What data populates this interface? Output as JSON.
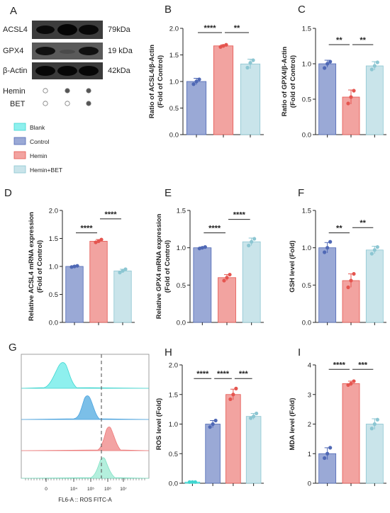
{
  "colors": {
    "control_fill": "#9aa9d6",
    "control_edge": "#4f68b5",
    "hemin_fill": "#f2a3a0",
    "hemin_edge": "#e5554f",
    "bet_fill": "#c9e4ea",
    "bet_edge": "#8cc6d2",
    "blank_fill": "#8ef0ee",
    "blank_edge": "#3fd6d0",
    "flow_blue": "#4aa3df",
    "flow_red": "#ee7a7a",
    "flow_green": "#7fe0c4"
  },
  "blot": {
    "panel_letter": "A",
    "rows": [
      {
        "protein": "ACSL4",
        "kda": "79kDa"
      },
      {
        "protein": "GPX4",
        "kda": "19 kDa"
      },
      {
        "protein": "β-Actin",
        "kda": "42kDa"
      }
    ],
    "treatments": [
      {
        "label": "Hemin",
        "dots": [
          false,
          true,
          true
        ]
      },
      {
        "label": "BET",
        "dots": [
          false,
          false,
          true
        ]
      }
    ]
  },
  "legend": {
    "items": [
      {
        "label": "Blank",
        "key": "blank"
      },
      {
        "label": "Control",
        "key": "control"
      },
      {
        "label": "Hemin",
        "key": "hemin"
      },
      {
        "label": "Hemin+BET",
        "key": "bet"
      }
    ]
  },
  "flow": {
    "panel_letter": "G",
    "xlabel": "FL6-A :: ROS FITC-A",
    "ticks": [
      "0",
      "10⁴",
      "10⁵",
      "10⁶",
      "10⁷"
    ]
  },
  "chart_data": [
    {
      "id": "B",
      "letter": "B",
      "type": "bar",
      "categories": [
        "Control",
        "Hemin",
        "Hemin+BET"
      ],
      "values": [
        1.0,
        1.67,
        1.33
      ],
      "errors": [
        0.06,
        0.02,
        0.09
      ],
      "points": [
        [
          0.95,
          1.0,
          1.04
        ],
        [
          1.65,
          1.67,
          1.69
        ],
        [
          1.26,
          1.35,
          1.4
        ]
      ],
      "ylabel": "Ratio of ACSL4/β-Actin\n(Fold of Control)",
      "ylim": [
        0,
        2.0
      ],
      "yticks": [
        "0.0",
        "0.5",
        "1.0",
        "1.5",
        "2.0"
      ],
      "sig": [
        {
          "from": 0,
          "to": 1,
          "label": "****",
          "level": 1.92
        },
        {
          "from": 1,
          "to": 2,
          "label": "**",
          "level": 1.92
        }
      ]
    },
    {
      "id": "C",
      "letter": "C",
      "type": "bar",
      "categories": [
        "Control",
        "Hemin",
        "Hemin+BET"
      ],
      "values": [
        1.0,
        0.53,
        0.97
      ],
      "errors": [
        0.05,
        0.1,
        0.06
      ],
      "points": [
        [
          0.94,
          1.0,
          1.03
        ],
        [
          0.44,
          0.53,
          0.62
        ],
        [
          0.92,
          0.97,
          1.02
        ]
      ],
      "ylabel": "Ratio of GPX4/β-Actin\n(Fold of Control)",
      "ylim": [
        0,
        1.5
      ],
      "yticks": [
        "0.0",
        "0.5",
        "1.0",
        "1.5"
      ],
      "sig": [
        {
          "from": 0,
          "to": 1,
          "label": "**",
          "level": 1.27
        },
        {
          "from": 1,
          "to": 2,
          "label": "**",
          "level": 1.27
        }
      ]
    },
    {
      "id": "D",
      "letter": "D",
      "type": "bar",
      "categories": [
        "Control",
        "Hemin",
        "Hemin+BET"
      ],
      "values": [
        1.0,
        1.45,
        0.92
      ],
      "errors": [
        0.01,
        0.03,
        0.03
      ],
      "points": [
        [
          0.99,
          1.0,
          1.01
        ],
        [
          1.43,
          1.45,
          1.48
        ],
        [
          0.89,
          0.92,
          0.95
        ]
      ],
      "ylabel": "Relative ACSL4 mRNA expression\n(Fold of Control)",
      "ylim": [
        0,
        2.0
      ],
      "yticks": [
        "0.0",
        "0.5",
        "1.0",
        "1.5",
        "2.0"
      ],
      "sig": [
        {
          "from": 0,
          "to": 1,
          "label": "****",
          "level": 1.6
        },
        {
          "from": 1,
          "to": 2,
          "label": "****",
          "level": 1.85
        }
      ]
    },
    {
      "id": "E",
      "letter": "E",
      "type": "bar",
      "categories": [
        "Control",
        "Hemin",
        "Hemin+BET"
      ],
      "values": [
        1.0,
        0.6,
        1.08
      ],
      "errors": [
        0.01,
        0.04,
        0.05
      ],
      "points": [
        [
          0.99,
          1.0,
          1.01
        ],
        [
          0.56,
          0.6,
          0.64
        ],
        [
          1.03,
          1.08,
          1.12
        ]
      ],
      "ylabel": "Relative GPX4 mRNA expression\n(Fold of Control)",
      "ylim": [
        0,
        1.5
      ],
      "yticks": [
        "0.0",
        "0.5",
        "1.0",
        "1.5"
      ],
      "sig": [
        {
          "from": 0,
          "to": 1,
          "label": "****",
          "level": 1.2
        },
        {
          "from": 1,
          "to": 2,
          "label": "****",
          "level": 1.38
        }
      ]
    },
    {
      "id": "F",
      "letter": "F",
      "type": "bar",
      "categories": [
        "Control",
        "Hemin",
        "Hemin+BET"
      ],
      "values": [
        1.0,
        0.56,
        0.97
      ],
      "errors": [
        0.07,
        0.09,
        0.05
      ],
      "points": [
        [
          0.94,
          1.0,
          1.08
        ],
        [
          0.47,
          0.56,
          0.65
        ],
        [
          0.92,
          0.97,
          1.01
        ]
      ],
      "ylabel": "GSH level (Fold)",
      "ylim": [
        0,
        1.5
      ],
      "yticks": [
        "0.0",
        "0.5",
        "1.0",
        "1.5"
      ],
      "sig": [
        {
          "from": 0,
          "to": 1,
          "label": "**",
          "level": 1.2
        },
        {
          "from": 1,
          "to": 2,
          "label": "**",
          "level": 1.27
        }
      ]
    },
    {
      "id": "H",
      "letter": "H",
      "type": "bar",
      "categories": [
        "Blank",
        "Control",
        "Hemin",
        "Hemin+BET"
      ],
      "values": [
        0.02,
        1.0,
        1.5,
        1.13
      ],
      "errors": [
        0.0,
        0.06,
        0.09,
        0.05
      ],
      "points": [
        [
          0.02,
          0.02,
          0.02
        ],
        [
          0.95,
          1.0,
          1.06
        ],
        [
          1.42,
          1.5,
          1.6
        ],
        [
          1.1,
          1.13,
          1.18
        ]
      ],
      "ylabel": "ROS level (Fold)",
      "ylim": [
        0,
        2.0
      ],
      "yticks": [
        "0.0",
        "0.5",
        "1.0",
        "1.5",
        "2.0"
      ],
      "sig": [
        {
          "from": 0,
          "to": 1,
          "label": "****",
          "level": 1.77
        },
        {
          "from": 1,
          "to": 2,
          "label": "****",
          "level": 1.77
        },
        {
          "from": 2,
          "to": 3,
          "label": "***",
          "level": 1.77
        }
      ]
    },
    {
      "id": "I",
      "letter": "I",
      "type": "bar",
      "categories": [
        "Control",
        "Hemin",
        "Hemin+BET"
      ],
      "values": [
        1.0,
        3.37,
        2.0
      ],
      "errors": [
        0.2,
        0.08,
        0.18
      ],
      "points": [
        [
          0.85,
          1.0,
          1.2
        ],
        [
          3.32,
          3.37,
          3.45
        ],
        [
          1.85,
          2.0,
          2.15
        ]
      ],
      "ylabel": "MDA level (Fold)",
      "ylim": [
        0,
        4
      ],
      "yticks": [
        "0",
        "1",
        "2",
        "3",
        "4"
      ],
      "sig": [
        {
          "from": 0,
          "to": 1,
          "label": "****",
          "level": 3.85
        },
        {
          "from": 1,
          "to": 2,
          "label": "***",
          "level": 3.85
        }
      ]
    }
  ]
}
